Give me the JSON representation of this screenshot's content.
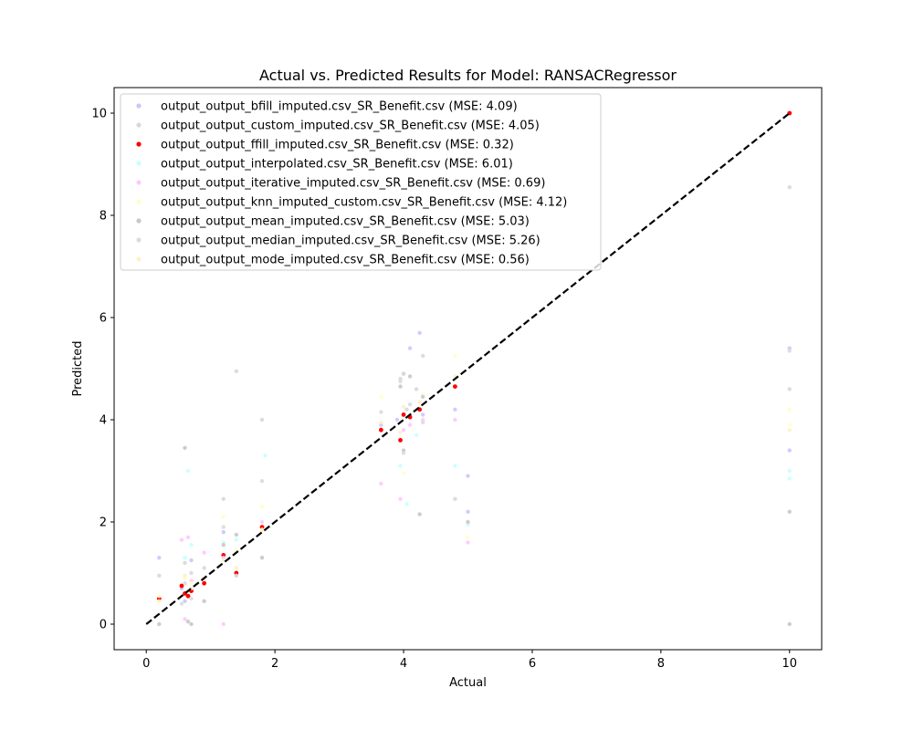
{
  "chart_data": {
    "type": "scatter",
    "title": "Actual vs. Predicted Results for Model: RANSACRegressor",
    "xlabel": "Actual",
    "ylabel": "Predicted",
    "xlim": [
      -0.5,
      10.5
    ],
    "ylim": [
      -0.5,
      10.5
    ],
    "xticks": [
      0,
      2,
      4,
      6,
      8,
      10
    ],
    "yticks": [
      0,
      2,
      4,
      6,
      8,
      10
    ],
    "grid": false,
    "legend_position": "upper-left",
    "reference_line": {
      "from": [
        0,
        0
      ],
      "to": [
        10,
        10
      ],
      "style": "dashed",
      "color": "#000000"
    },
    "series": [
      {
        "name": "output_output_bfill_imputed.csv_SR_Benefit.csv (MSE: 4.09)",
        "color": "#c8c8ff",
        "points": [
          [
            0.2,
            1.3
          ],
          [
            0.55,
            0.7
          ],
          [
            0.6,
            0.45
          ],
          [
            0.7,
            1.25
          ],
          [
            1.2,
            1.8
          ],
          [
            1.4,
            0.95
          ],
          [
            3.65,
            3.9
          ],
          [
            3.9,
            4.0
          ],
          [
            4.0,
            4.9
          ],
          [
            4.1,
            5.4
          ],
          [
            4.25,
            5.7
          ],
          [
            4.3,
            4.1
          ],
          [
            4.8,
            4.2
          ],
          [
            5.0,
            2.9
          ],
          [
            5.0,
            2.2
          ],
          [
            10.0,
            3.4
          ],
          [
            10.0,
            5.4
          ]
        ]
      },
      {
        "name": "output_output_custom_imputed.csv_SR_Benefit.csv (MSE: 4.05)",
        "color": "#d8d8d8",
        "points": [
          [
            0.2,
            0.95
          ],
          [
            0.6,
            1.2
          ],
          [
            0.7,
            1.0
          ],
          [
            0.9,
            1.1
          ],
          [
            1.2,
            2.45
          ],
          [
            1.4,
            4.95
          ],
          [
            1.8,
            4.0
          ],
          [
            3.95,
            4.8
          ],
          [
            4.0,
            4.9
          ],
          [
            4.05,
            4.2
          ],
          [
            4.2,
            4.6
          ],
          [
            4.3,
            5.25
          ],
          [
            4.8,
            2.45
          ],
          [
            10.0,
            8.55
          ],
          [
            10.0,
            4.6
          ]
        ]
      },
      {
        "name": "output_output_ffill_imputed.csv_SR_Benefit.csv (MSE: 0.32)",
        "color": "#ff0000",
        "points": [
          [
            0.2,
            0.5
          ],
          [
            0.55,
            0.75
          ],
          [
            0.6,
            0.6
          ],
          [
            0.65,
            0.55
          ],
          [
            0.7,
            0.65
          ],
          [
            0.9,
            0.8
          ],
          [
            1.2,
            1.35
          ],
          [
            1.4,
            1.0
          ],
          [
            1.8,
            1.9
          ],
          [
            3.65,
            3.8
          ],
          [
            3.95,
            3.6
          ],
          [
            4.0,
            4.1
          ],
          [
            4.1,
            4.05
          ],
          [
            4.25,
            4.2
          ],
          [
            4.8,
            4.65
          ],
          [
            10.0,
            10.0
          ]
        ]
      },
      {
        "name": "output_output_interpolated.csv_SR_Benefit.csv (MSE: 6.01)",
        "color": "#c8ffff",
        "points": [
          [
            0.6,
            1.3
          ],
          [
            0.65,
            3.0
          ],
          [
            0.7,
            1.55
          ],
          [
            1.2,
            1.6
          ],
          [
            1.4,
            1.65
          ],
          [
            1.85,
            3.3
          ],
          [
            3.95,
            3.1
          ],
          [
            4.05,
            2.35
          ],
          [
            4.2,
            3.7
          ],
          [
            4.8,
            3.1
          ],
          [
            5.0,
            1.95
          ],
          [
            10.0,
            3.0
          ],
          [
            10.0,
            2.85
          ]
        ]
      },
      {
        "name": "output_output_iterative_imputed.csv_SR_Benefit.csv (MSE: 0.69)",
        "color": "#ffc8ff",
        "points": [
          [
            0.55,
            1.65
          ],
          [
            0.6,
            0.1
          ],
          [
            0.65,
            1.7
          ],
          [
            0.7,
            0.85
          ],
          [
            0.9,
            1.4
          ],
          [
            1.2,
            0.0
          ],
          [
            1.2,
            1.3
          ],
          [
            1.8,
            2.0
          ],
          [
            3.65,
            2.75
          ],
          [
            3.95,
            2.45
          ],
          [
            4.0,
            3.8
          ],
          [
            4.1,
            3.9
          ],
          [
            4.3,
            4.0
          ],
          [
            4.8,
            4.0
          ],
          [
            5.0,
            1.6
          ]
        ]
      },
      {
        "name": "output_output_knn_imputed_custom.csv_SR_Benefit.csv (MSE: 4.12)",
        "color": "#ffffc8",
        "points": [
          [
            0.2,
            0.55
          ],
          [
            0.6,
            0.9
          ],
          [
            0.7,
            0.8
          ],
          [
            1.2,
            2.1
          ],
          [
            1.4,
            1.45
          ],
          [
            1.8,
            2.3
          ],
          [
            3.65,
            4.45
          ],
          [
            4.0,
            2.95
          ],
          [
            4.3,
            4.5
          ],
          [
            4.8,
            5.25
          ],
          [
            5.0,
            1.7
          ],
          [
            10.0,
            4.2
          ],
          [
            10.0,
            3.9
          ]
        ]
      },
      {
        "name": "output_output_mean_imputed.csv_SR_Benefit.csv (MSE: 5.03)",
        "color": "#c8c8c8",
        "points": [
          [
            0.2,
            0.0
          ],
          [
            0.6,
            3.45
          ],
          [
            0.65,
            0.05
          ],
          [
            0.7,
            0.0
          ],
          [
            0.9,
            0.45
          ],
          [
            1.2,
            1.55
          ],
          [
            1.4,
            1.75
          ],
          [
            1.8,
            1.3
          ],
          [
            3.95,
            4.65
          ],
          [
            4.0,
            3.4
          ],
          [
            4.1,
            4.85
          ],
          [
            4.25,
            2.15
          ],
          [
            4.3,
            4.45
          ],
          [
            5.0,
            2.0
          ],
          [
            10.0,
            2.2
          ],
          [
            10.0,
            0.0
          ]
        ]
      },
      {
        "name": "output_output_median_imputed.csv_SR_Benefit.csv (MSE: 5.26)",
        "color": "#dcdcdc",
        "points": [
          [
            0.55,
            0.4
          ],
          [
            0.6,
            0.8
          ],
          [
            0.7,
            0.5
          ],
          [
            1.2,
            1.9
          ],
          [
            1.4,
            0.95
          ],
          [
            1.8,
            2.8
          ],
          [
            3.65,
            4.15
          ],
          [
            3.95,
            4.75
          ],
          [
            4.0,
            3.35
          ],
          [
            4.1,
            4.3
          ],
          [
            4.3,
            3.95
          ],
          [
            4.8,
            2.45
          ],
          [
            10.0,
            5.35
          ]
        ]
      },
      {
        "name": "output_output_mode_imputed.csv_SR_Benefit.csv (MSE: 0.56)",
        "color": "#fff0c8",
        "points": [
          [
            0.2,
            0.45
          ],
          [
            0.6,
            0.95
          ],
          [
            0.7,
            0.7
          ],
          [
            0.9,
            0.9
          ],
          [
            1.2,
            1.25
          ],
          [
            1.4,
            1.1
          ],
          [
            1.8,
            1.85
          ],
          [
            3.65,
            3.95
          ],
          [
            3.95,
            3.75
          ],
          [
            4.0,
            4.25
          ],
          [
            4.25,
            4.35
          ],
          [
            4.8,
            4.85
          ],
          [
            10.0,
            3.8
          ]
        ]
      }
    ]
  }
}
